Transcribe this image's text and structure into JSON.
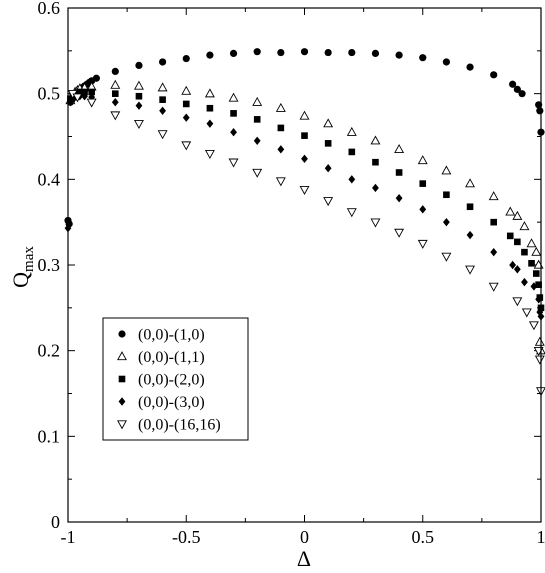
{
  "chart_data": {
    "type": "scatter",
    "xlabel": "Δ",
    "ylabel": {
      "main": "Q",
      "sub": "max"
    },
    "xlim": [
      -1,
      1
    ],
    "ylim": [
      0,
      0.6
    ],
    "xticks": [
      -1,
      -0.5,
      0,
      0.5,
      1
    ],
    "xtick_labels": [
      "-1",
      "-0.5",
      "0",
      "0.5",
      "1"
    ],
    "yticks": [
      0,
      0.1,
      0.2,
      0.3,
      0.4,
      0.5,
      0.6
    ],
    "ytick_labels": [
      "0",
      "0.1",
      "0.2",
      "0.3",
      "0.4",
      "0.5",
      "0.6"
    ],
    "grid": false,
    "legend_position": "lower-left",
    "series": [
      {
        "name": "(0,0)-(1,0)",
        "marker": "circle-filled",
        "x": [
          -1,
          -0.995,
          -0.99,
          -0.985,
          -0.98,
          -0.975,
          -0.97,
          -0.96,
          -0.95,
          -0.94,
          -0.93,
          -0.92,
          -0.91,
          -0.9,
          -0.88,
          -0.8,
          -0.7,
          -0.6,
          -0.5,
          -0.4,
          -0.3,
          -0.2,
          -0.1,
          0,
          0.1,
          0.2,
          0.3,
          0.4,
          0.5,
          0.6,
          0.7,
          0.8,
          0.88,
          0.9,
          0.92,
          0.99,
          0.995,
          1.0
        ],
        "y": [
          0.352,
          0.348,
          0.49,
          0.492,
          0.495,
          0.497,
          0.5,
          0.503,
          0.505,
          0.507,
          0.509,
          0.511,
          0.513,
          0.515,
          0.518,
          0.526,
          0.533,
          0.537,
          0.541,
          0.545,
          0.547,
          0.549,
          0.548,
          0.549,
          0.548,
          0.548,
          0.547,
          0.545,
          0.542,
          0.537,
          0.531,
          0.522,
          0.511,
          0.505,
          0.5,
          0.487,
          0.48,
          0.455
        ]
      },
      {
        "name": "(0,0)-(1,1)",
        "marker": "triangle-up-open",
        "x": [
          -0.99,
          -0.98,
          -0.97,
          -0.96,
          -0.95,
          -0.93,
          -0.9,
          -0.8,
          -0.7,
          -0.6,
          -0.5,
          -0.4,
          -0.3,
          -0.2,
          -0.1,
          0,
          0.1,
          0.2,
          0.3,
          0.4,
          0.5,
          0.6,
          0.7,
          0.8,
          0.87,
          0.9,
          0.93,
          0.96,
          0.98,
          0.99,
          0.995,
          1.0
        ],
        "y": [
          0.492,
          0.498,
          0.502,
          0.504,
          0.506,
          0.507,
          0.508,
          0.51,
          0.509,
          0.507,
          0.503,
          0.5,
          0.495,
          0.49,
          0.483,
          0.474,
          0.465,
          0.455,
          0.445,
          0.435,
          0.422,
          0.41,
          0.395,
          0.38,
          0.362,
          0.357,
          0.345,
          0.325,
          0.315,
          0.3,
          0.21,
          0.2
        ]
      },
      {
        "name": "(0,0)-(2,0)",
        "marker": "square-filled",
        "x": [
          -0.99,
          -0.98,
          -0.97,
          -0.96,
          -0.95,
          -0.93,
          -0.9,
          -0.8,
          -0.7,
          -0.6,
          -0.5,
          -0.4,
          -0.3,
          -0.2,
          -0.1,
          0,
          0.1,
          0.2,
          0.3,
          0.4,
          0.5,
          0.6,
          0.7,
          0.8,
          0.87,
          0.9,
          0.93,
          0.96,
          0.98,
          0.99,
          0.995,
          1.0
        ],
        "y": [
          0.494,
          0.498,
          0.5,
          0.501,
          0.502,
          0.502,
          0.502,
          0.5,
          0.497,
          0.493,
          0.488,
          0.483,
          0.477,
          0.47,
          0.46,
          0.451,
          0.442,
          0.432,
          0.42,
          0.408,
          0.395,
          0.382,
          0.368,
          0.35,
          0.334,
          0.327,
          0.315,
          0.302,
          0.29,
          0.277,
          0.262,
          0.25
        ]
      },
      {
        "name": "(0,0)-(3,0)",
        "marker": "diamond-filled",
        "x": [
          -1,
          -0.99,
          -0.98,
          -0.97,
          -0.96,
          -0.95,
          -0.93,
          -0.9,
          -0.8,
          -0.7,
          -0.6,
          -0.5,
          -0.4,
          -0.3,
          -0.2,
          -0.1,
          0,
          0.1,
          0.2,
          0.3,
          0.4,
          0.5,
          0.6,
          0.7,
          0.8,
          0.88,
          0.9,
          0.93,
          0.97,
          0.99,
          0.995,
          1.0
        ],
        "y": [
          0.343,
          0.49,
          0.494,
          0.496,
          0.497,
          0.497,
          0.497,
          0.496,
          0.49,
          0.486,
          0.48,
          0.472,
          0.465,
          0.455,
          0.445,
          0.435,
          0.424,
          0.413,
          0.4,
          0.39,
          0.378,
          0.365,
          0.35,
          0.335,
          0.315,
          0.3,
          0.295,
          0.28,
          0.275,
          0.26,
          0.245,
          0.24
        ]
      },
      {
        "name": "(0,0)-(16,16)",
        "marker": "triangle-down-open",
        "x": [
          -0.98,
          -0.96,
          -0.9,
          -0.8,
          -0.7,
          -0.6,
          -0.5,
          -0.4,
          -0.3,
          -0.2,
          -0.1,
          0,
          0.1,
          0.2,
          0.3,
          0.4,
          0.5,
          0.6,
          0.7,
          0.8,
          0.9,
          0.94,
          0.97,
          0.99,
          0.995,
          1.0
        ],
        "y": [
          0.5,
          0.496,
          0.49,
          0.475,
          0.465,
          0.453,
          0.44,
          0.43,
          0.42,
          0.408,
          0.398,
          0.388,
          0.375,
          0.362,
          0.35,
          0.338,
          0.325,
          0.31,
          0.295,
          0.275,
          0.258,
          0.245,
          0.23,
          0.2,
          0.19,
          0.153
        ]
      }
    ]
  }
}
